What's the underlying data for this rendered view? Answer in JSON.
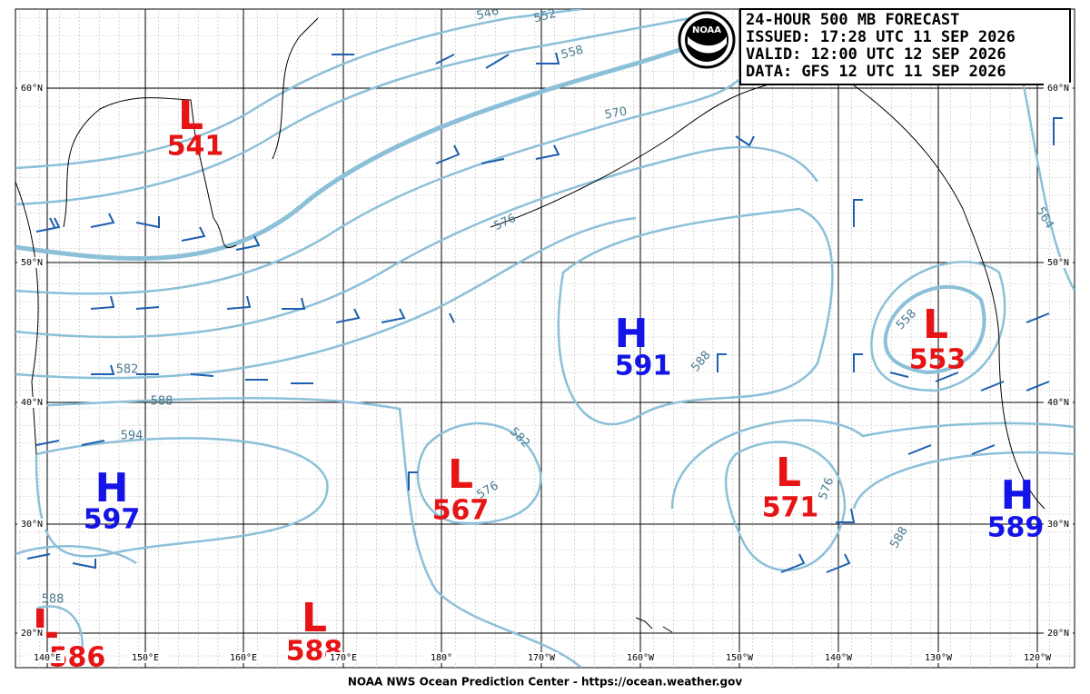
{
  "header": {
    "lines": [
      "24-HOUR 500 MB FORECAST",
      "ISSUED: 17:28 UTC 11 SEP 2026",
      "VALID:  12:00 UTC 12 SEP 2026",
      "DATA:  GFS 12 UTC 11 SEP 2026"
    ],
    "logo": "NOAA"
  },
  "centers": [
    {
      "kind": "L",
      "value": 541
    },
    {
      "kind": "L",
      "value": 553
    },
    {
      "kind": "H",
      "value": 591
    },
    {
      "kind": "H",
      "value": 597
    },
    {
      "kind": "L",
      "value": 567
    },
    {
      "kind": "L",
      "value": 571
    },
    {
      "kind": "H",
      "value": 589
    },
    {
      "kind": "L",
      "value": 588
    },
    {
      "kind": "L",
      "value": 586
    }
  ],
  "contour_labels": [
    546,
    552,
    558,
    570,
    576,
    564,
    558,
    582,
    588,
    594,
    588,
    582,
    576,
    576,
    588,
    588
  ],
  "latitudes": [
    "60°N",
    "50°N",
    "40°N",
    "30°N",
    "20°N"
  ],
  "longitudes": [
    "140°E",
    "150°E",
    "160°E",
    "170°E",
    "180°",
    "170°W",
    "160°W",
    "150°W",
    "140°W",
    "130°W",
    "120°W"
  ],
  "footer": "NOAA NWS Ocean Prediction Center - https://ocean.weather.gov"
}
